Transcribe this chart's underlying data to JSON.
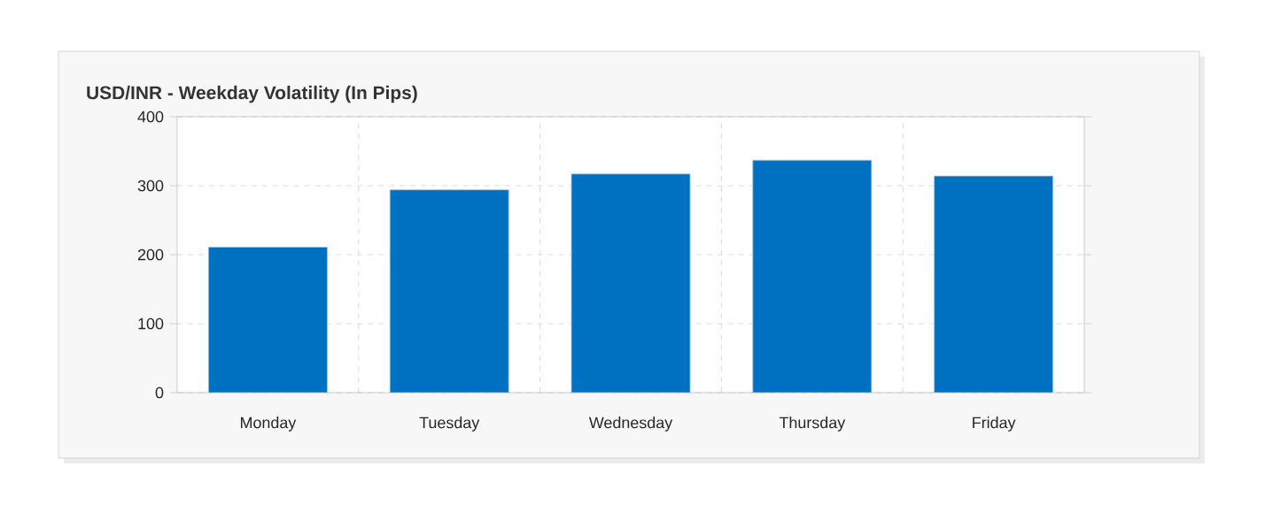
{
  "chart_data": {
    "type": "bar",
    "title": "USD/INR - Weekday Volatility (In Pips)",
    "categories": [
      "Monday",
      "Tuesday",
      "Wednesday",
      "Thursday",
      "Friday"
    ],
    "values": [
      211,
      294,
      317,
      337,
      314
    ],
    "color": "#0070c0",
    "ylim": [
      0,
      400
    ],
    "yticks": [
      0,
      100,
      200,
      300,
      400
    ],
    "grid": true
  }
}
